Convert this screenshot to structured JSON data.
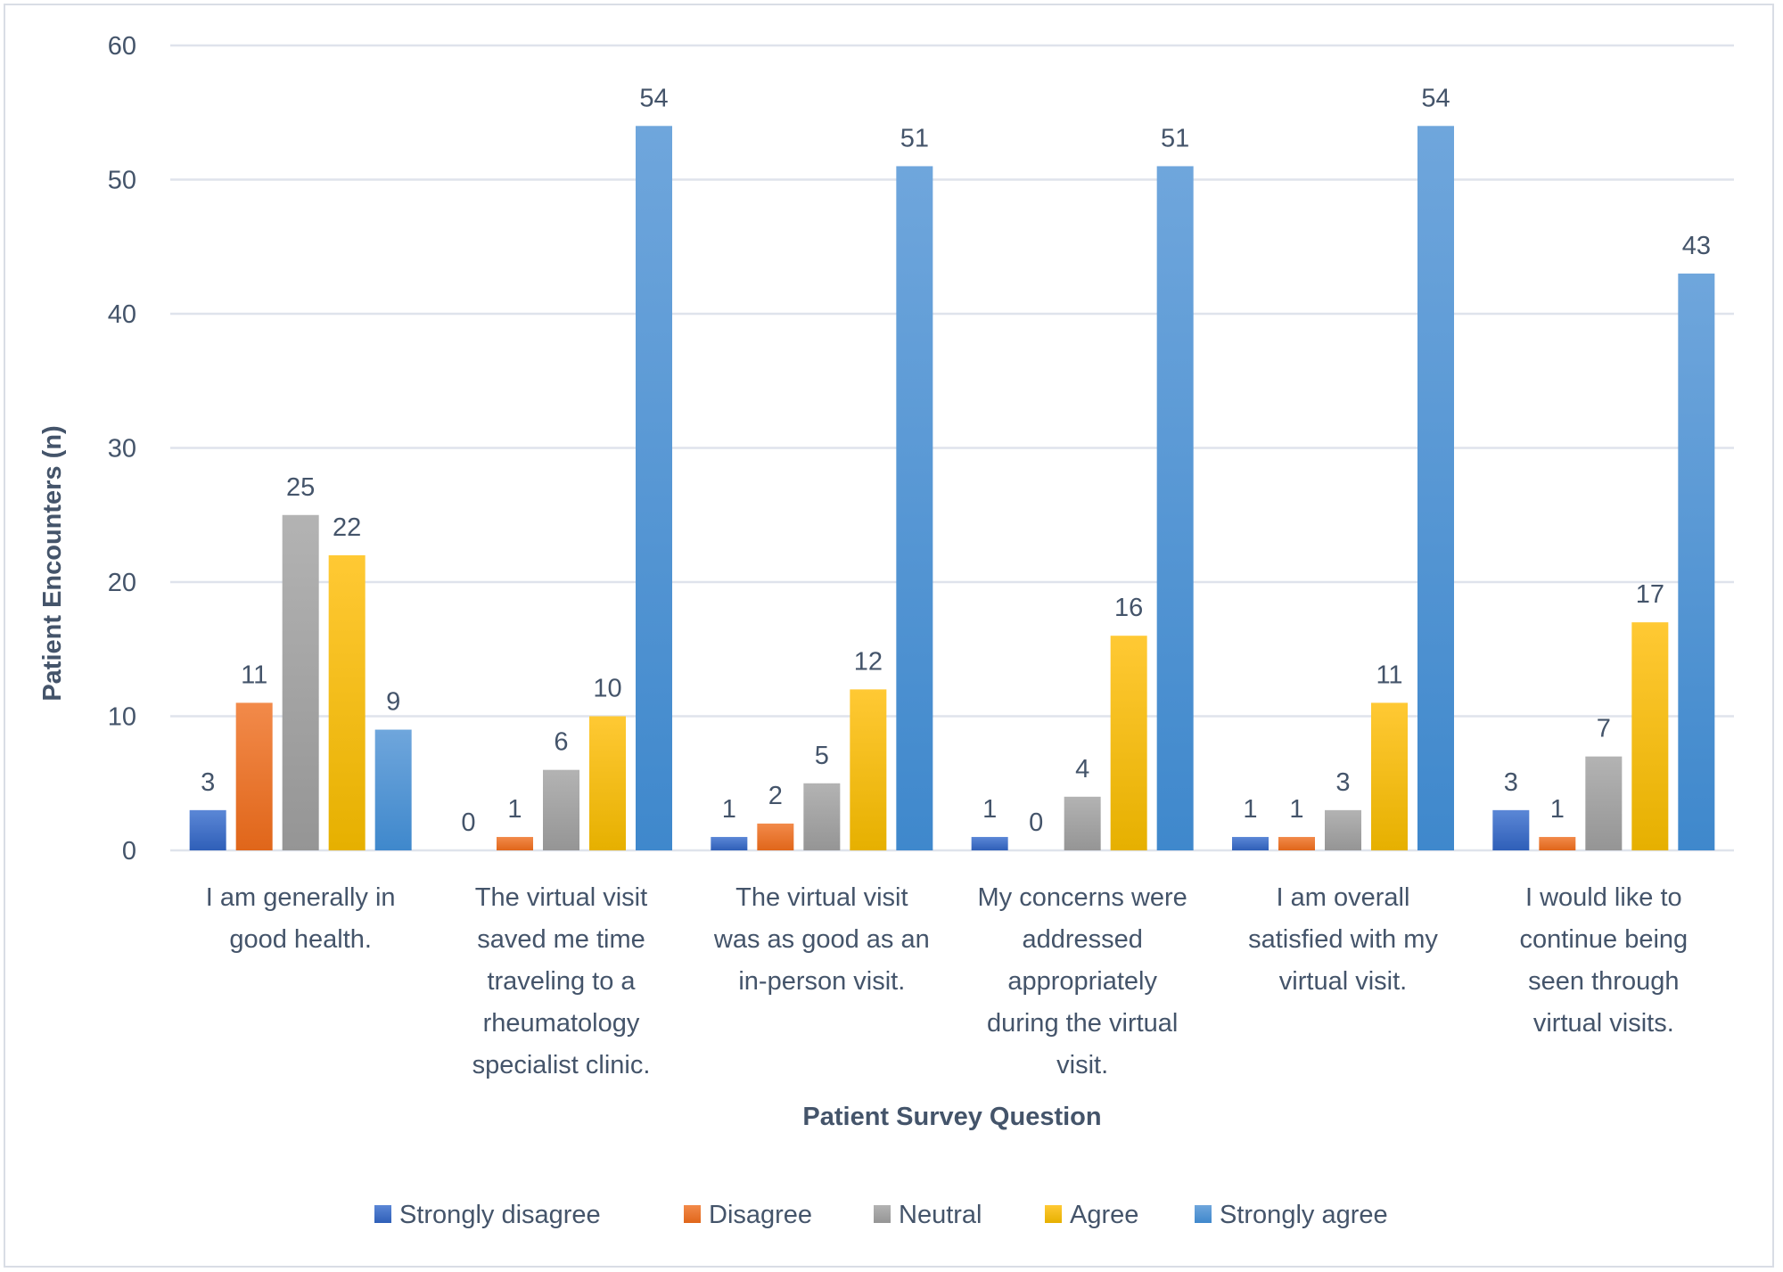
{
  "chart_data": {
    "type": "bar",
    "title": "",
    "xlabel": "Patient Survey Question",
    "ylabel": "Patient Encounters (n)",
    "ylim": [
      0,
      60
    ],
    "yticks": [
      0,
      10,
      20,
      30,
      40,
      50,
      60
    ],
    "grid": true,
    "legend_position": "bottom",
    "categories": [
      [
        "I am generally in",
        "good health."
      ],
      [
        "The virtual visit",
        "saved me time",
        "traveling to a",
        "rheumatology",
        "specialist clinic."
      ],
      [
        "The virtual visit",
        "was as good as an",
        "in-person visit."
      ],
      [
        "My concerns were",
        "addressed",
        "appropriately",
        "during the virtual",
        "visit."
      ],
      [
        "I am overall",
        "satisfied with my",
        "virtual visit."
      ],
      [
        "I would like to",
        "continue being",
        "seen through",
        "virtual visits."
      ]
    ],
    "series": [
      {
        "name": "Strongly disagree",
        "color": "#4472c4",
        "color_light": "#5b87d6",
        "color_dark": "#2f5fb8",
        "values": [
          3,
          0,
          1,
          1,
          1,
          3
        ]
      },
      {
        "name": "Disagree",
        "color": "#ed7d31",
        "color_light": "#f28a4a",
        "color_dark": "#e0661a",
        "values": [
          11,
          1,
          2,
          0,
          1,
          1
        ]
      },
      {
        "name": "Neutral",
        "color": "#a5a5a5",
        "color_light": "#b3b3b3",
        "color_dark": "#959595",
        "values": [
          25,
          6,
          5,
          4,
          3,
          7
        ]
      },
      {
        "name": "Agree",
        "color": "#ffc000",
        "color_light": "#ffc934",
        "color_dark": "#e6b000",
        "values": [
          22,
          10,
          12,
          16,
          11,
          17
        ]
      },
      {
        "name": "Strongly agree",
        "color": "#5b9bd5",
        "color_light": "#6fa6dc",
        "color_dark": "#3f88cc",
        "values": [
          9,
          54,
          51,
          51,
          54,
          43
        ]
      }
    ]
  }
}
